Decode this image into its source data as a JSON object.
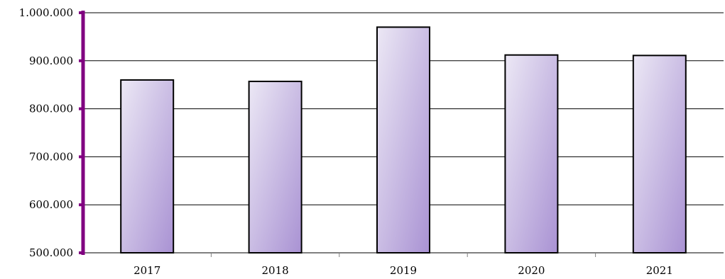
{
  "chart_data": {
    "type": "bar",
    "categories": [
      "2017",
      "2018",
      "2019",
      "2020",
      "2021"
    ],
    "values": [
      860000,
      857000,
      970000,
      912000,
      911000
    ],
    "y_tick_labels": [
      "500.000",
      "600.000",
      "700.000",
      "800.000",
      "900.000",
      "1.000.000"
    ],
    "y_ticks": [
      500000,
      600000,
      700000,
      800000,
      900000,
      1000000
    ],
    "ylim": [
      500000,
      1000000
    ],
    "grid": true,
    "legend": "none"
  },
  "colors": {
    "axis": "#800080",
    "bar_light": "#ece8f5",
    "bar_dark": "#a992d3",
    "bar_outline": "#000000",
    "grid": "#000000"
  }
}
